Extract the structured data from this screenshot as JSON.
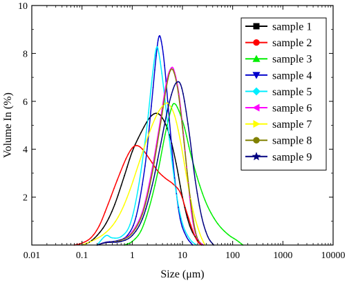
{
  "chart_data": {
    "type": "line",
    "title": "",
    "xlabel": "Size (μm)",
    "ylabel": "Volume In (%)",
    "x_scale": "log",
    "xlim": [
      0.01,
      10000
    ],
    "ylim": [
      0,
      10
    ],
    "x_tick_labels": [
      "0.01",
      "0.1",
      "1",
      "10",
      "100",
      "1000",
      "10000"
    ],
    "y_tick_labels": [
      "2",
      "4",
      "6",
      "8",
      "10"
    ],
    "grid": false,
    "legend_position": "top-right",
    "series": [
      {
        "name": "sample 1",
        "color": "#000000",
        "marker": "square",
        "points": [
          [
            0.1,
            0
          ],
          [
            0.14,
            0.12
          ],
          [
            0.2,
            0.4
          ],
          [
            0.3,
            0.9
          ],
          [
            0.45,
            1.7
          ],
          [
            0.7,
            2.9
          ],
          [
            1.0,
            3.9
          ],
          [
            1.5,
            4.7
          ],
          [
            2.2,
            5.3
          ],
          [
            3.0,
            5.5
          ],
          [
            4.0,
            5.3
          ],
          [
            5.5,
            4.6
          ],
          [
            7.5,
            3.4
          ],
          [
            10,
            2.0
          ],
          [
            14,
            0.8
          ],
          [
            20,
            0.2
          ],
          [
            26,
            0
          ]
        ]
      },
      {
        "name": "sample 2",
        "color": "#ff0000",
        "marker": "circle",
        "points": [
          [
            0.07,
            0
          ],
          [
            0.1,
            0.08
          ],
          [
            0.15,
            0.3
          ],
          [
            0.22,
            0.8
          ],
          [
            0.33,
            1.7
          ],
          [
            0.5,
            2.7
          ],
          [
            0.75,
            3.6
          ],
          [
            1.0,
            4.05
          ],
          [
            1.25,
            4.15
          ],
          [
            1.6,
            4.0
          ],
          [
            2.2,
            3.6
          ],
          [
            3.2,
            3.1
          ],
          [
            4.5,
            2.8
          ],
          [
            6.5,
            2.55
          ],
          [
            9,
            2.2
          ],
          [
            12,
            1.4
          ],
          [
            16,
            0.6
          ],
          [
            20,
            0.15
          ],
          [
            24,
            0
          ]
        ]
      },
      {
        "name": "sample 3",
        "color": "#00ee00",
        "marker": "triangle-up",
        "points": [
          [
            0.7,
            0
          ],
          [
            1.0,
            0.15
          ],
          [
            1.5,
            0.6
          ],
          [
            2.2,
            1.6
          ],
          [
            3.2,
            3.0
          ],
          [
            4.5,
            4.6
          ],
          [
            6.0,
            5.7
          ],
          [
            7.0,
            5.9
          ],
          [
            8.5,
            5.6
          ],
          [
            11,
            4.9
          ],
          [
            15,
            3.7
          ],
          [
            22,
            2.5
          ],
          [
            32,
            1.6
          ],
          [
            50,
            0.9
          ],
          [
            80,
            0.45
          ],
          [
            120,
            0.2
          ],
          [
            160,
            0
          ]
        ]
      },
      {
        "name": "sample 4",
        "color": "#0000cc",
        "marker": "triangle-down",
        "points": [
          [
            0.2,
            0
          ],
          [
            0.3,
            0.12
          ],
          [
            0.5,
            0.18
          ],
          [
            0.8,
            0.4
          ],
          [
            1.2,
            1.2
          ],
          [
            1.8,
            3.3
          ],
          [
            2.4,
            5.8
          ],
          [
            3.0,
            7.9
          ],
          [
            3.4,
            8.7
          ],
          [
            3.8,
            8.5
          ],
          [
            4.4,
            7.5
          ],
          [
            5.5,
            5.2
          ],
          [
            7.0,
            2.8
          ],
          [
            9,
            1.1
          ],
          [
            12,
            0.35
          ],
          [
            16,
            0
          ]
        ]
      },
      {
        "name": "sample 5",
        "color": "#00eeff",
        "marker": "diamond",
        "points": [
          [
            0.2,
            0
          ],
          [
            0.27,
            0.32
          ],
          [
            0.32,
            0.4
          ],
          [
            0.4,
            0.3
          ],
          [
            0.6,
            0.35
          ],
          [
            0.9,
            0.85
          ],
          [
            1.3,
            2.3
          ],
          [
            1.9,
            4.7
          ],
          [
            2.5,
            7.0
          ],
          [
            3.0,
            8.2
          ],
          [
            3.4,
            8.0
          ],
          [
            4.2,
            6.6
          ],
          [
            5.5,
            4.4
          ],
          [
            7.5,
            2.2
          ],
          [
            10,
            0.9
          ],
          [
            14,
            0.25
          ],
          [
            19,
            0
          ]
        ]
      },
      {
        "name": "sample 6",
        "color": "#ff00ff",
        "marker": "triangle-left",
        "points": [
          [
            0.2,
            0
          ],
          [
            0.3,
            0.1
          ],
          [
            0.6,
            0.2
          ],
          [
            1.0,
            0.55
          ],
          [
            1.6,
            1.4
          ],
          [
            2.4,
            3.0
          ],
          [
            3.5,
            5.0
          ],
          [
            4.8,
            6.8
          ],
          [
            6.0,
            7.4
          ],
          [
            7.0,
            7.2
          ],
          [
            8.5,
            6.3
          ],
          [
            10.5,
            4.6
          ],
          [
            13,
            2.6
          ],
          [
            16,
            1.0
          ],
          [
            20,
            0.25
          ],
          [
            26,
            0
          ]
        ]
      },
      {
        "name": "sample 7",
        "color": "#ffff00",
        "marker": "triangle-right",
        "points": [
          [
            0.1,
            0
          ],
          [
            0.15,
            0.15
          ],
          [
            0.25,
            0.4
          ],
          [
            0.4,
            0.8
          ],
          [
            0.6,
            1.4
          ],
          [
            0.9,
            2.3
          ],
          [
            1.4,
            3.5
          ],
          [
            2.2,
            4.7
          ],
          [
            3.2,
            5.5
          ],
          [
            4.5,
            5.9
          ],
          [
            5.5,
            5.85
          ],
          [
            7.0,
            5.4
          ],
          [
            9,
            4.4
          ],
          [
            12,
            2.9
          ],
          [
            16,
            1.5
          ],
          [
            22,
            0.5
          ],
          [
            28,
            0
          ]
        ]
      },
      {
        "name": "sample 8",
        "color": "#808000",
        "marker": "circle",
        "points": [
          [
            0.2,
            0
          ],
          [
            0.3,
            0.1
          ],
          [
            0.6,
            0.2
          ],
          [
            1.0,
            0.5
          ],
          [
            1.6,
            1.3
          ],
          [
            2.4,
            2.8
          ],
          [
            3.5,
            4.8
          ],
          [
            4.8,
            6.6
          ],
          [
            5.8,
            7.3
          ],
          [
            6.8,
            7.2
          ],
          [
            8.2,
            6.4
          ],
          [
            10,
            4.9
          ],
          [
            12.5,
            3.0
          ],
          [
            15.5,
            1.4
          ],
          [
            19,
            0.4
          ],
          [
            24,
            0
          ]
        ]
      },
      {
        "name": "sample 9",
        "color": "#000080",
        "marker": "star",
        "points": [
          [
            0.2,
            0
          ],
          [
            0.3,
            0.1
          ],
          [
            0.6,
            0.15
          ],
          [
            1.0,
            0.4
          ],
          [
            1.6,
            1.1
          ],
          [
            2.5,
            2.5
          ],
          [
            3.6,
            4.1
          ],
          [
            5.0,
            5.6
          ],
          [
            6.5,
            6.5
          ],
          [
            7.8,
            6.8
          ],
          [
            9.2,
            6.7
          ],
          [
            11,
            6.0
          ],
          [
            14,
            4.5
          ],
          [
            18,
            2.7
          ],
          [
            24,
            1.2
          ],
          [
            32,
            0.35
          ],
          [
            42,
            0
          ]
        ]
      }
    ]
  }
}
